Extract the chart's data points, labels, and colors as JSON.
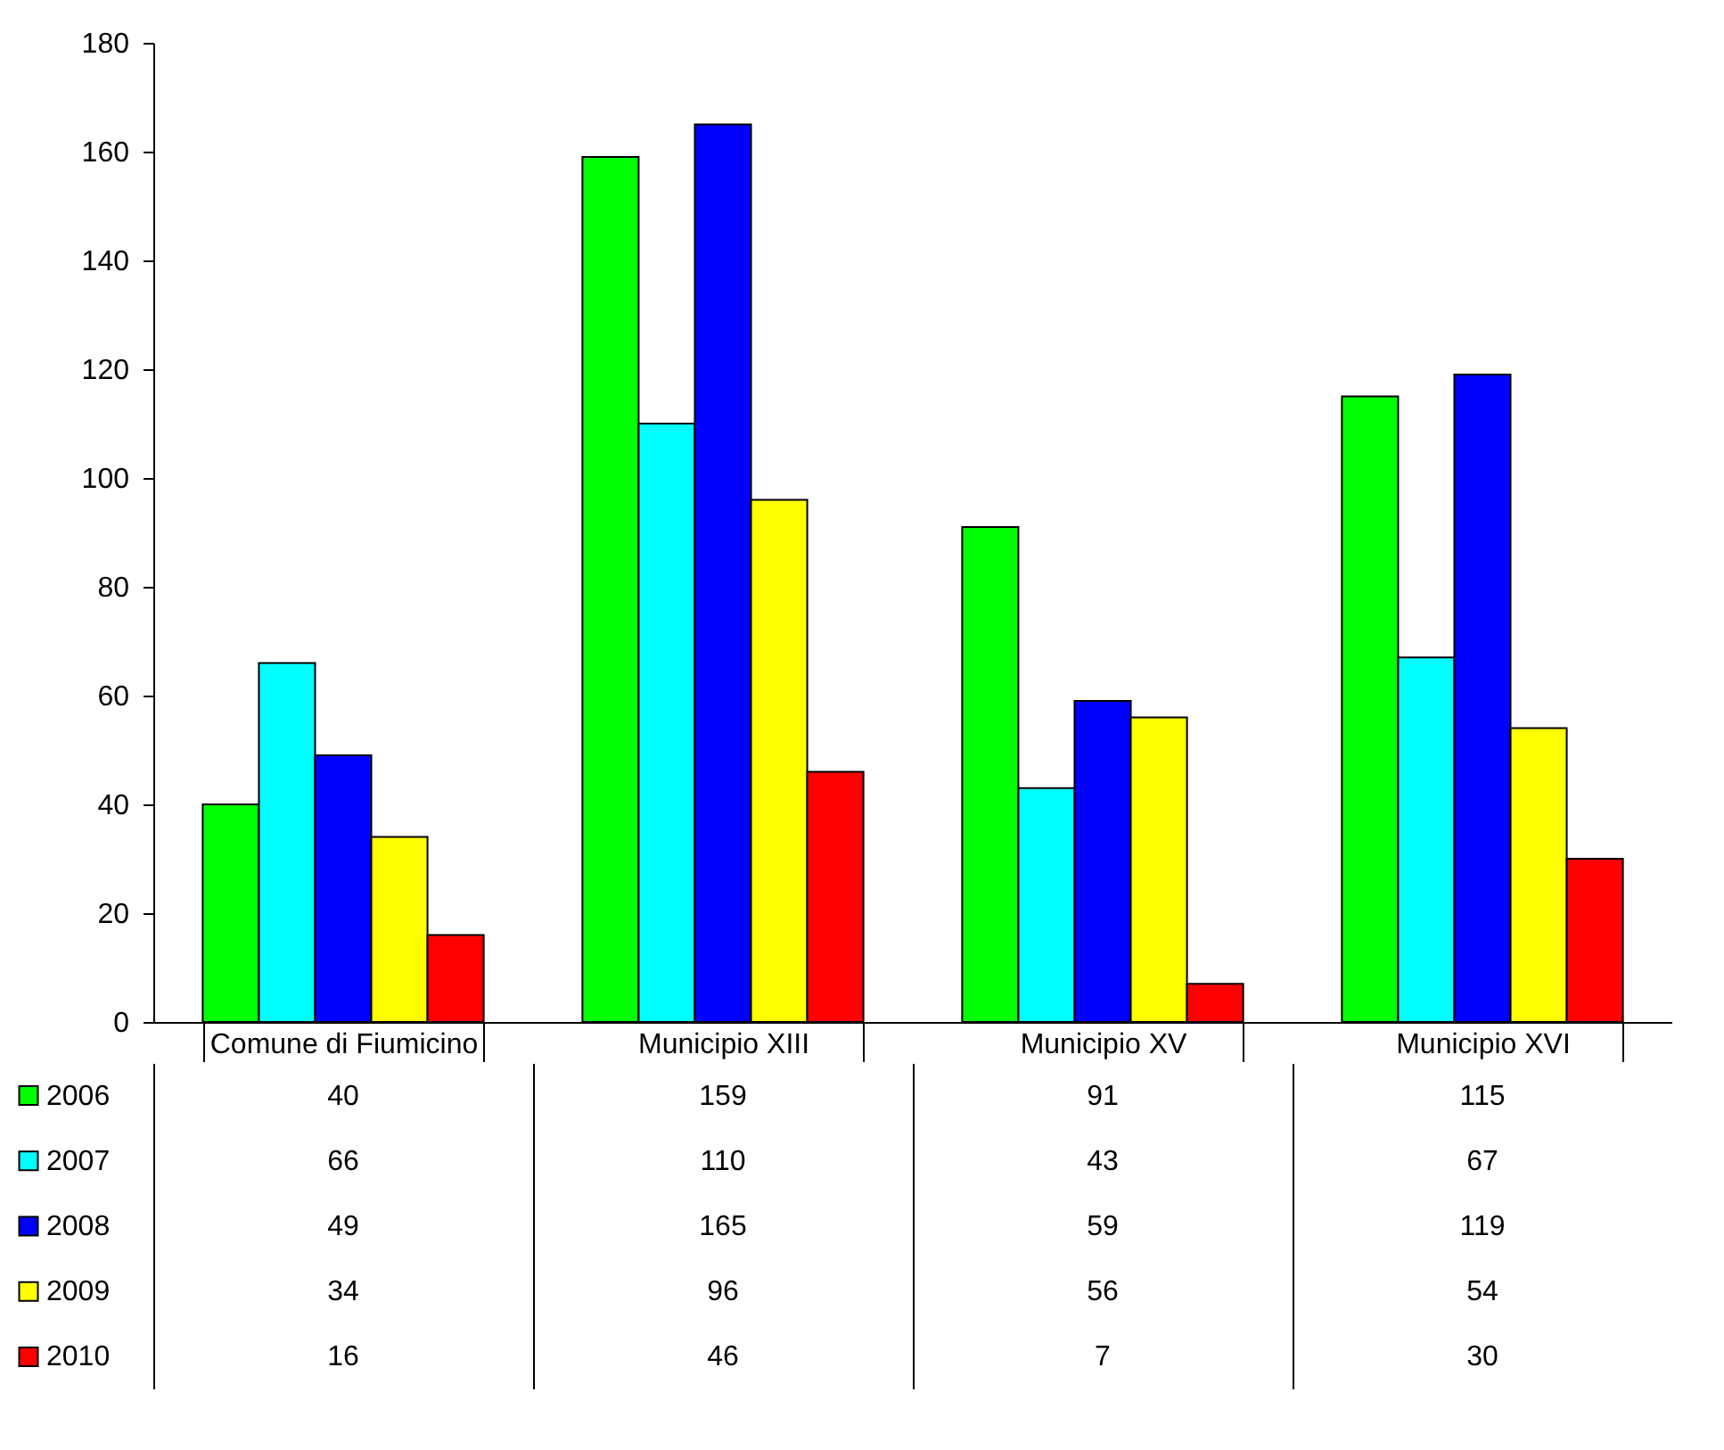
{
  "chart_data": {
    "type": "bar",
    "categories": [
      "Comune di Fiumicino",
      "Municipio XIII",
      "Municipio XV",
      "Municipio XVI"
    ],
    "series": [
      {
        "name": "2006",
        "color": "#00ff00",
        "values": [
          40,
          159,
          91,
          115
        ]
      },
      {
        "name": "2007",
        "color": "#00ffff",
        "values": [
          66,
          110,
          43,
          67
        ]
      },
      {
        "name": "2008",
        "color": "#0000ff",
        "values": [
          49,
          165,
          59,
          119
        ]
      },
      {
        "name": "2009",
        "color": "#ffff00",
        "values": [
          34,
          96,
          56,
          54
        ]
      },
      {
        "name": "2010",
        "color": "#ff0000",
        "values": [
          16,
          46,
          7,
          30
        ]
      }
    ],
    "ylim": [
      0,
      180
    ],
    "yticks": [
      0,
      20,
      40,
      60,
      80,
      100,
      120,
      140,
      160,
      180
    ],
    "grid": false,
    "legend": "bottom",
    "data_labels": true
  }
}
